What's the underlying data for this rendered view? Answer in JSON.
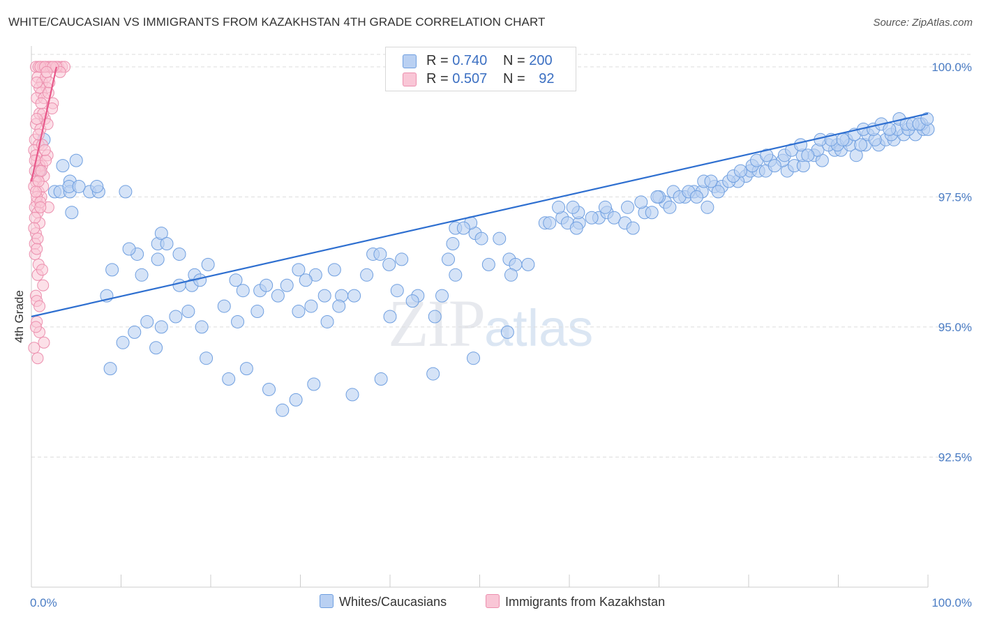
{
  "title": "WHITE/CAUCASIAN VS IMMIGRANTS FROM KAZAKHSTAN 4TH GRADE CORRELATION CHART",
  "source": "Source: ZipAtlas.com",
  "watermark": {
    "zip": "ZIP",
    "atlas": "atlas"
  },
  "legend": {
    "series1": {
      "r_label": "R =",
      "r_value": "0.740",
      "n_label": "N =",
      "n_value": "200"
    },
    "series2": {
      "r_label": "R =",
      "r_value": "0.507",
      "n_label": "N =",
      "n_value": "92"
    }
  },
  "chart_data": {
    "type": "scatter",
    "title": "WHITE/CAUCASIAN VS IMMIGRANTS FROM KAZAKHSTAN 4TH GRADE CORRELATION CHART",
    "xlabel": "",
    "ylabel": "4th Grade",
    "xlim": [
      0,
      100
    ],
    "ylim": [
      90.0,
      100.4
    ],
    "y_ticks": [
      {
        "value": 100.0,
        "label": "100.0%"
      },
      {
        "value": 97.5,
        "label": "97.5%"
      },
      {
        "value": 95.0,
        "label": "95.0%"
      },
      {
        "value": 92.5,
        "label": "92.5%"
      }
    ],
    "x_ticks": [
      {
        "value": 0,
        "label": "0.0%"
      },
      {
        "value": 100,
        "label": "100.0%"
      }
    ],
    "grid": true,
    "legend_position": "top-center",
    "series": [
      {
        "name": "Whites/Caucasians",
        "color": "#7aa7e8",
        "line_color": "#2e6fd0",
        "trend": {
          "x": [
            0,
            100
          ],
          "y": [
            95.2,
            99.1
          ]
        },
        "points": [
          [
            1.4,
            98.6
          ],
          [
            0.9,
            98.0
          ],
          [
            2.6,
            97.6
          ],
          [
            3.2,
            97.6
          ],
          [
            4.5,
            97.2
          ],
          [
            4.3,
            97.8
          ],
          [
            6.5,
            97.6
          ],
          [
            7.5,
            97.6
          ],
          [
            7.3,
            97.7
          ],
          [
            4.3,
            97.6
          ],
          [
            4.2,
            97.7
          ],
          [
            5.3,
            97.7
          ],
          [
            3.5,
            98.1
          ],
          [
            5.0,
            98.2
          ],
          [
            10.5,
            97.6
          ],
          [
            11.8,
            96.4
          ],
          [
            10.9,
            96.5
          ],
          [
            14.1,
            96.6
          ],
          [
            14.5,
            96.8
          ],
          [
            15.1,
            96.6
          ],
          [
            14.1,
            96.3
          ],
          [
            16.5,
            96.4
          ],
          [
            19.7,
            96.2
          ],
          [
            18.2,
            96.0
          ],
          [
            17.9,
            95.8
          ],
          [
            12.3,
            96.0
          ],
          [
            9.0,
            96.1
          ],
          [
            8.4,
            95.6
          ],
          [
            16.5,
            95.8
          ],
          [
            18.8,
            95.9
          ],
          [
            22.8,
            95.9
          ],
          [
            23.6,
            95.7
          ],
          [
            25.5,
            95.7
          ],
          [
            26.2,
            95.8
          ],
          [
            28.5,
            95.8
          ],
          [
            29.8,
            96.1
          ],
          [
            31.7,
            96.0
          ],
          [
            30.6,
            95.9
          ],
          [
            33.8,
            96.1
          ],
          [
            34.6,
            95.6
          ],
          [
            32.7,
            95.6
          ],
          [
            37.4,
            96.0
          ],
          [
            38.1,
            96.4
          ],
          [
            38.9,
            96.4
          ],
          [
            40.8,
            95.7
          ],
          [
            39.9,
            96.2
          ],
          [
            41.3,
            96.3
          ],
          [
            43.1,
            95.6
          ],
          [
            45.8,
            95.6
          ],
          [
            47.3,
            96.0
          ],
          [
            46.5,
            96.3
          ],
          [
            47.0,
            96.6
          ],
          [
            49.5,
            96.8
          ],
          [
            47.3,
            96.9
          ],
          [
            50.2,
            96.7
          ],
          [
            52.2,
            96.7
          ],
          [
            53.3,
            96.3
          ],
          [
            54.0,
            96.2
          ],
          [
            53.5,
            96.0
          ],
          [
            55.4,
            96.2
          ],
          [
            49.0,
            97.0
          ],
          [
            48.2,
            96.9
          ],
          [
            57.3,
            97.0
          ],
          [
            57.8,
            97.0
          ],
          [
            59.2,
            97.1
          ],
          [
            59.8,
            97.0
          ],
          [
            61.1,
            97.0
          ],
          [
            60.8,
            96.9
          ],
          [
            63.3,
            97.1
          ],
          [
            64.2,
            97.2
          ],
          [
            65.0,
            97.1
          ],
          [
            66.2,
            97.0
          ],
          [
            67.1,
            96.9
          ],
          [
            68.4,
            97.2
          ],
          [
            69.2,
            97.2
          ],
          [
            70.7,
            97.4
          ],
          [
            71.6,
            97.6
          ],
          [
            72.9,
            97.5
          ],
          [
            73.9,
            97.6
          ],
          [
            74.8,
            97.6
          ],
          [
            75.4,
            97.3
          ],
          [
            76.2,
            97.7
          ],
          [
            77.0,
            97.7
          ],
          [
            79.7,
            97.9
          ],
          [
            80.2,
            98.0
          ],
          [
            81.1,
            98.0
          ],
          [
            82.4,
            98.2
          ],
          [
            84.3,
            98.0
          ],
          [
            85.1,
            98.1
          ],
          [
            86.1,
            98.1
          ],
          [
            87.3,
            98.3
          ],
          [
            88.2,
            98.2
          ],
          [
            89.6,
            98.4
          ],
          [
            90.3,
            98.4
          ],
          [
            91.3,
            98.5
          ],
          [
            92.0,
            98.3
          ],
          [
            93.0,
            98.5
          ],
          [
            94.5,
            98.5
          ],
          [
            95.3,
            98.6
          ],
          [
            96.2,
            98.6
          ],
          [
            97.3,
            98.7
          ],
          [
            98.6,
            98.7
          ],
          [
            99.5,
            98.8
          ],
          [
            76.6,
            97.6
          ],
          [
            75.0,
            97.8
          ],
          [
            70.0,
            97.5
          ],
          [
            78.8,
            97.8
          ],
          [
            80.4,
            98.1
          ],
          [
            81.9,
            98.0
          ],
          [
            83.8,
            98.2
          ],
          [
            86.0,
            98.3
          ],
          [
            87.7,
            98.4
          ],
          [
            88.9,
            98.5
          ],
          [
            89.9,
            98.5
          ],
          [
            90.9,
            98.6
          ],
          [
            92.5,
            98.5
          ],
          [
            93.3,
            98.7
          ],
          [
            94.1,
            98.6
          ],
          [
            95.9,
            98.7
          ],
          [
            96.6,
            98.8
          ],
          [
            97.8,
            98.8
          ],
          [
            99.3,
            98.9
          ],
          [
            100.0,
            98.8
          ],
          [
            64.0,
            97.3
          ],
          [
            62.5,
            97.1
          ],
          [
            61.0,
            97.2
          ],
          [
            60.4,
            97.3
          ],
          [
            58.8,
            97.3
          ],
          [
            68.0,
            97.4
          ],
          [
            66.5,
            97.3
          ],
          [
            69.8,
            97.5
          ],
          [
            71.2,
            97.3
          ],
          [
            72.3,
            97.5
          ],
          [
            73.3,
            97.6
          ],
          [
            74.2,
            97.5
          ],
          [
            75.8,
            97.8
          ],
          [
            77.8,
            97.8
          ],
          [
            78.3,
            97.9
          ],
          [
            79.1,
            98.0
          ],
          [
            80.9,
            98.2
          ],
          [
            82.0,
            98.3
          ],
          [
            82.9,
            98.1
          ],
          [
            84.0,
            98.3
          ],
          [
            84.8,
            98.4
          ],
          [
            85.8,
            98.5
          ],
          [
            86.6,
            98.3
          ],
          [
            88.0,
            98.6
          ],
          [
            89.2,
            98.6
          ],
          [
            90.5,
            98.6
          ],
          [
            91.8,
            98.7
          ],
          [
            92.8,
            98.8
          ],
          [
            93.9,
            98.8
          ],
          [
            94.8,
            98.9
          ],
          [
            95.7,
            98.8
          ],
          [
            96.8,
            99.0
          ],
          [
            97.6,
            98.9
          ],
          [
            98.3,
            98.9
          ],
          [
            99.0,
            98.9
          ],
          [
            99.9,
            99.0
          ],
          [
            51.0,
            96.2
          ],
          [
            45.0,
            95.2
          ],
          [
            42.5,
            95.5
          ],
          [
            40.0,
            95.2
          ],
          [
            36.0,
            95.6
          ],
          [
            34.3,
            95.4
          ],
          [
            33.0,
            95.1
          ],
          [
            31.2,
            95.4
          ],
          [
            29.8,
            95.3
          ],
          [
            27.5,
            95.6
          ],
          [
            25.2,
            95.3
          ],
          [
            23.0,
            95.1
          ],
          [
            21.5,
            95.4
          ],
          [
            19.0,
            95.0
          ],
          [
            17.5,
            95.3
          ],
          [
            16.1,
            95.2
          ],
          [
            14.5,
            95.0
          ],
          [
            12.9,
            95.1
          ],
          [
            11.5,
            94.9
          ],
          [
            10.2,
            94.7
          ],
          [
            13.9,
            94.6
          ],
          [
            19.5,
            94.4
          ],
          [
            24.0,
            94.2
          ],
          [
            26.5,
            93.8
          ],
          [
            29.5,
            93.6
          ],
          [
            31.5,
            93.9
          ],
          [
            35.8,
            93.7
          ],
          [
            39.0,
            94.0
          ],
          [
            44.8,
            94.1
          ],
          [
            49.3,
            94.4
          ],
          [
            53.1,
            94.9
          ],
          [
            8.8,
            94.2
          ],
          [
            22.0,
            94.0
          ],
          [
            28.0,
            93.4
          ]
        ]
      },
      {
        "name": "Immigrants from Kazakhstan",
        "color": "#f2a3bd",
        "line_color": "#e8588a",
        "trend": {
          "x": [
            0,
            2.8
          ],
          "y": [
            97.8,
            100.0
          ]
        },
        "points": [
          [
            0.5,
            100.0
          ],
          [
            0.8,
            100.0
          ],
          [
            1.0,
            100.0
          ],
          [
            1.3,
            100.0
          ],
          [
            1.6,
            100.0
          ],
          [
            1.9,
            100.0
          ],
          [
            2.2,
            100.0
          ],
          [
            2.6,
            100.0
          ],
          [
            3.0,
            100.0
          ],
          [
            3.4,
            100.0
          ],
          [
            3.7,
            100.0
          ],
          [
            0.7,
            99.8
          ],
          [
            1.2,
            99.7
          ],
          [
            1.7,
            99.6
          ],
          [
            1.1,
            99.5
          ],
          [
            0.6,
            99.4
          ],
          [
            2.4,
            99.3
          ],
          [
            0.9,
            99.1
          ],
          [
            1.5,
            99.0
          ],
          [
            0.5,
            98.9
          ],
          [
            1.0,
            98.8
          ],
          [
            0.4,
            98.6
          ],
          [
            0.8,
            98.5
          ],
          [
            0.3,
            98.4
          ],
          [
            1.8,
            98.3
          ],
          [
            0.6,
            98.2
          ],
          [
            1.2,
            98.1
          ],
          [
            0.9,
            98.1
          ],
          [
            0.4,
            98.0
          ],
          [
            0.7,
            97.9
          ],
          [
            1.4,
            97.9
          ],
          [
            0.5,
            97.8
          ],
          [
            0.3,
            97.7
          ],
          [
            0.8,
            97.6
          ],
          [
            1.1,
            97.5
          ],
          [
            0.6,
            97.4
          ],
          [
            0.4,
            97.3
          ],
          [
            1.9,
            97.3
          ],
          [
            0.7,
            97.2
          ],
          [
            0.9,
            97.0
          ],
          [
            0.5,
            96.8
          ],
          [
            0.4,
            96.6
          ],
          [
            0.8,
            96.2
          ],
          [
            0.7,
            96.0
          ],
          [
            1.3,
            95.8
          ],
          [
            0.5,
            95.6
          ],
          [
            0.6,
            95.1
          ],
          [
            0.9,
            94.9
          ],
          [
            1.4,
            94.7
          ],
          [
            0.7,
            94.4
          ],
          [
            2.1,
            100.0
          ],
          [
            2.8,
            100.0
          ],
          [
            3.2,
            99.9
          ],
          [
            1.6,
            99.8
          ],
          [
            2.0,
            99.7
          ],
          [
            0.9,
            99.6
          ],
          [
            1.4,
            99.4
          ],
          [
            2.3,
            99.2
          ],
          [
            1.3,
            99.1
          ],
          [
            0.6,
            99.0
          ],
          [
            1.8,
            98.9
          ],
          [
            0.8,
            98.7
          ],
          [
            1.2,
            98.5
          ],
          [
            0.5,
            98.3
          ],
          [
            1.6,
            98.2
          ],
          [
            0.9,
            98.0
          ],
          [
            1.3,
            97.7
          ],
          [
            0.6,
            97.5
          ],
          [
            1.0,
            97.4
          ],
          [
            0.4,
            97.1
          ],
          [
            0.7,
            96.7
          ],
          [
            0.4,
            96.4
          ],
          [
            0.6,
            95.5
          ],
          [
            0.5,
            95.0
          ],
          [
            1.0,
            100.0
          ],
          [
            1.5,
            100.0
          ],
          [
            2.4,
            100.0
          ],
          [
            1.7,
            99.9
          ],
          [
            0.6,
            99.7
          ],
          [
            1.1,
            99.3
          ],
          [
            1.5,
            98.4
          ],
          [
            0.4,
            98.2
          ],
          [
            1.1,
            98.0
          ],
          [
            0.8,
            97.8
          ],
          [
            0.5,
            97.6
          ],
          [
            1.0,
            97.3
          ],
          [
            0.3,
            96.9
          ],
          [
            0.6,
            96.5
          ],
          [
            1.2,
            96.1
          ],
          [
            0.9,
            95.4
          ],
          [
            0.3,
            94.6
          ],
          [
            1.9,
            99.5
          ]
        ]
      }
    ]
  },
  "bottom_legend": {
    "series1_label": "Whites/Caucasians",
    "series2_label": "Immigrants from Kazakhstan"
  },
  "colors": {
    "blue_fill": "#b9d0f2",
    "blue_stroke": "#6f9fe0",
    "pink_fill": "#f9c6d6",
    "pink_stroke": "#ec8fae"
  }
}
